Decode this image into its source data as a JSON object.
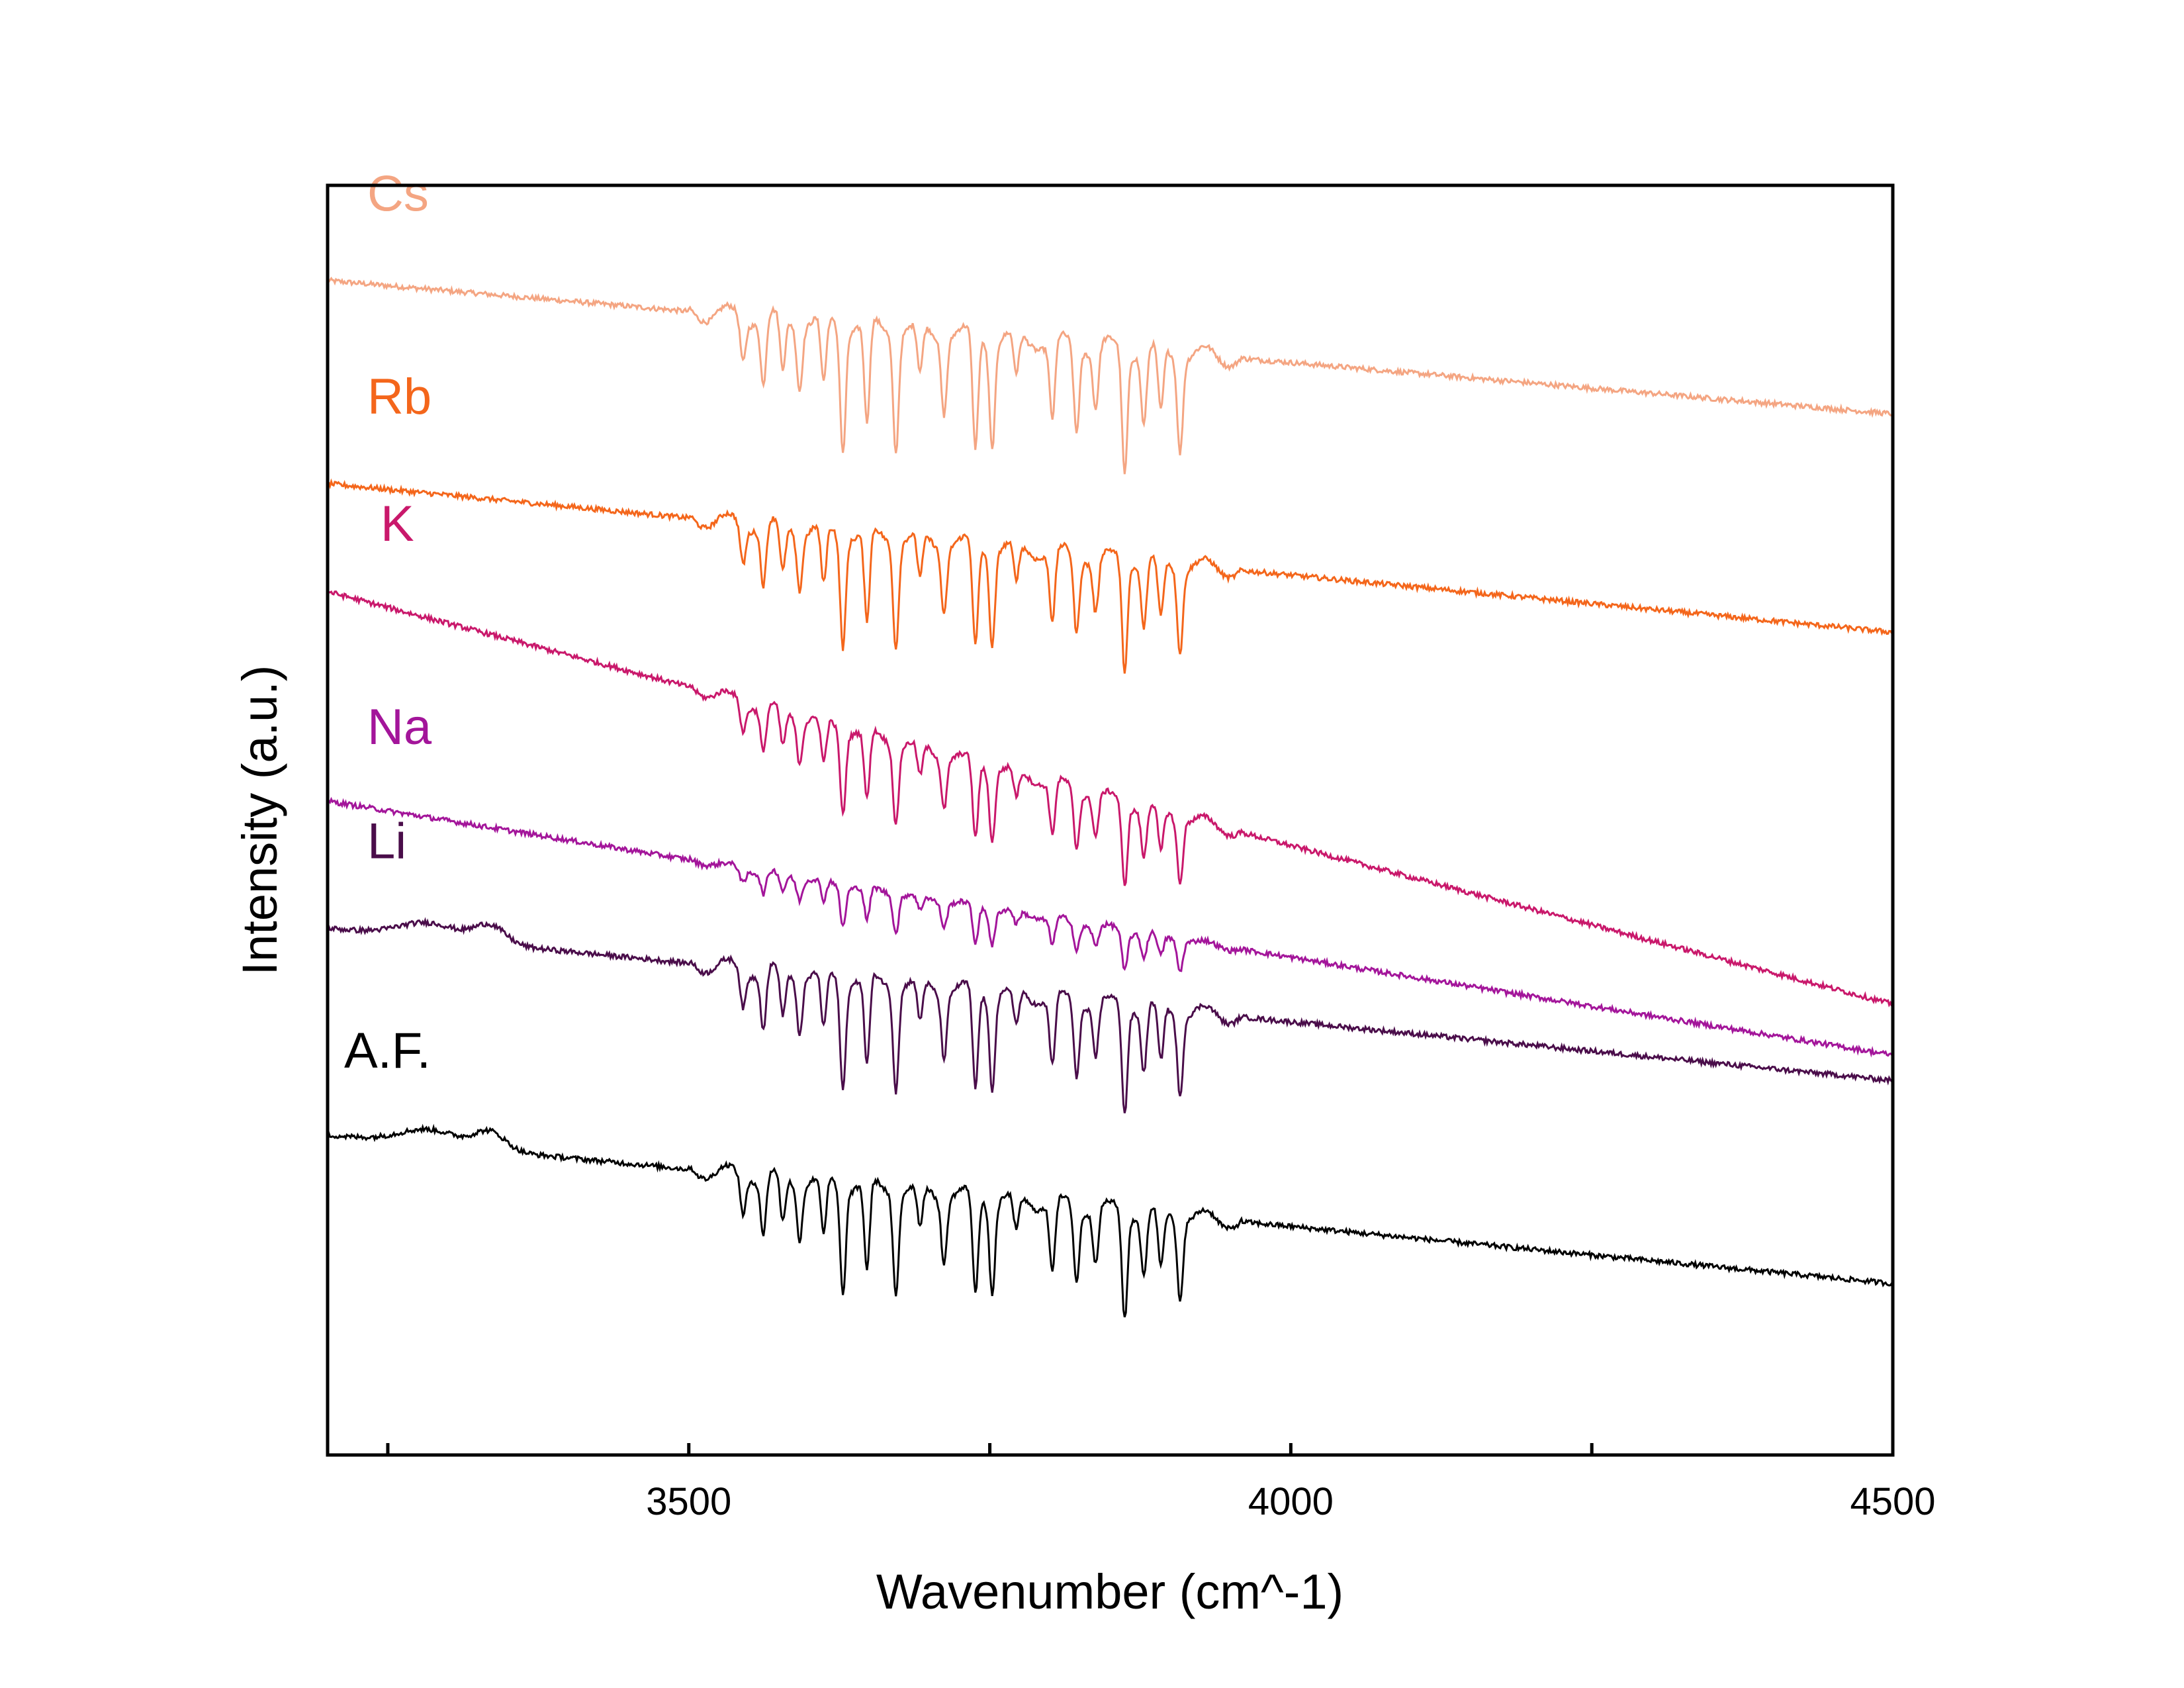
{
  "chart_data": {
    "type": "line",
    "title": "",
    "xlabel": "Wavenumber (cm^-1)",
    "ylabel": "Intensity (a.u.)",
    "xlim": [
      3200,
      4500
    ],
    "ylim": [
      0,
      1
    ],
    "x_tick_labels": [
      "3500",
      "4000",
      "4500"
    ],
    "x_ticks": [
      3250,
      3500,
      3750,
      4000,
      4250,
      4500
    ],
    "y_ticks_labeled": false,
    "grid": false,
    "legend": "none (series labeled directly above each trace)",
    "absorption_lines": [
      {
        "x": 3545,
        "depth": 0.35
      },
      {
        "x": 3562,
        "depth": 0.55
      },
      {
        "x": 3578,
        "depth": 0.45
      },
      {
        "x": 3592,
        "depth": 0.5
      },
      {
        "x": 3612,
        "depth": 0.55
      },
      {
        "x": 3628,
        "depth": 1.0
      },
      {
        "x": 3648,
        "depth": 0.85
      },
      {
        "x": 3672,
        "depth": 0.95
      },
      {
        "x": 3692,
        "depth": 0.4
      },
      {
        "x": 3712,
        "depth": 0.6
      },
      {
        "x": 3738,
        "depth": 0.95
      },
      {
        "x": 3752,
        "depth": 0.85
      },
      {
        "x": 3772,
        "depth": 0.35
      },
      {
        "x": 3802,
        "depth": 0.65
      },
      {
        "x": 3822,
        "depth": 0.7
      },
      {
        "x": 3838,
        "depth": 0.5
      },
      {
        "x": 3862,
        "depth": 1.0
      },
      {
        "x": 3878,
        "depth": 0.6
      },
      {
        "x": 3892,
        "depth": 0.55
      },
      {
        "x": 3908,
        "depth": 0.75
      }
    ],
    "series": [
      {
        "name": "Cs",
        "color": "#f4a582",
        "offset": 0.93,
        "start": 0.925,
        "end": 0.82,
        "line_depth": 0.185
      },
      {
        "name": "Rb",
        "color": "#f4661b",
        "offset": 0.77,
        "start": 0.765,
        "end": 0.648,
        "line_depth": 0.165
      },
      {
        "name": "K",
        "color": "#c9186b",
        "offset": 0.67,
        "start": 0.68,
        "end": 0.355,
        "line_depth": 0.125
      },
      {
        "name": "Na",
        "color": "#a3159a",
        "offset": 0.51,
        "start": 0.515,
        "end": 0.315,
        "line_depth": 0.06
      },
      {
        "name": "Li",
        "color": "#4a0d4a",
        "offset": 0.42,
        "start": 0.415,
        "end": 0.295,
        "line_depth": 0.16
      },
      {
        "name": "A.F.",
        "color": "#000000",
        "offset": 0.255,
        "start": 0.252,
        "end": 0.135,
        "line_depth": 0.16
      }
    ]
  }
}
